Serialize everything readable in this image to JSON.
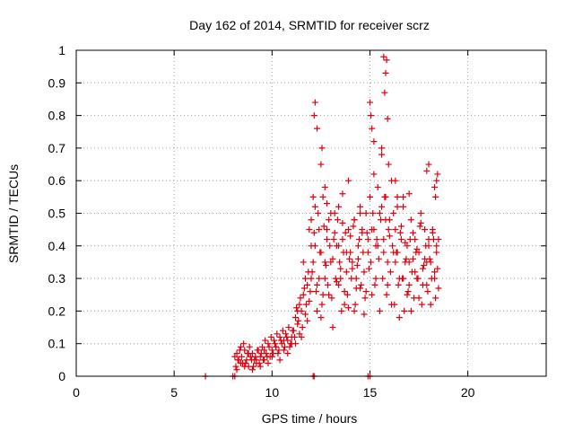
{
  "chart_data": {
    "type": "scatter",
    "title": "Day 162 of 2014, SRMTID for receiver scrz",
    "xlabel": "GPS time / hours",
    "ylabel": "SRMTID / TECUs",
    "xlim": [
      0,
      24
    ],
    "ylim": [
      0,
      1
    ],
    "xticks": [
      0,
      5,
      10,
      15,
      20
    ],
    "xtick_labels": [
      "0",
      "5",
      "10",
      "15",
      "20"
    ],
    "yticks": [
      0,
      0.1,
      0.2,
      0.3,
      0.4,
      0.5,
      0.6,
      0.7,
      0.8,
      0.9,
      1
    ],
    "ytick_labels": [
      "0",
      "0.1",
      "0.2",
      "0.3",
      "0.4",
      "0.5",
      "0.6",
      "0.7",
      "0.8",
      "0.9",
      "1"
    ],
    "grid": true,
    "marker": "+",
    "series": [
      {
        "name": "SRMTID",
        "color": "#e0000f",
        "x": [
          6.6,
          8.0,
          8.1,
          12.1,
          12.15,
          14.9,
          15.0,
          8.1,
          8.2,
          8.3,
          8.4,
          8.5,
          8.6,
          8.7,
          8.8,
          8.9,
          9.0,
          9.1,
          9.2,
          9.3,
          9.4,
          9.5,
          9.6,
          9.7,
          9.8,
          9.9,
          10.0,
          10.1,
          10.2,
          10.3,
          10.4,
          10.5,
          10.6,
          10.7,
          10.8,
          10.9,
          11.0,
          8.15,
          8.25,
          8.35,
          8.45,
          8.55,
          8.65,
          8.75,
          8.85,
          8.95,
          9.05,
          9.15,
          9.25,
          9.35,
          9.45,
          9.55,
          9.65,
          9.75,
          9.85,
          9.95,
          10.05,
          10.15,
          10.25,
          10.35,
          10.45,
          10.55,
          10.65,
          10.75,
          10.85,
          10.95,
          11.05,
          8.2,
          8.4,
          8.6,
          8.8,
          9.0,
          9.2,
          9.4,
          9.6,
          9.8,
          10.0,
          10.2,
          10.4,
          10.6,
          10.8,
          11.0,
          11.1,
          11.2,
          11.3,
          11.4,
          11.5,
          11.6,
          11.7,
          11.8,
          11.9,
          12.0,
          11.15,
          11.25,
          11.35,
          11.45,
          11.55,
          11.65,
          11.75,
          11.85,
          11.95,
          11.2,
          11.4,
          11.6,
          11.8,
          12.0,
          11.3,
          11.5,
          11.7,
          11.9,
          12.0,
          12.1,
          12.2,
          12.3,
          12.4,
          12.5,
          12.6,
          12.7,
          12.8,
          12.9,
          13.0,
          13.1,
          13.2,
          13.3,
          13.4,
          13.5,
          13.6,
          13.7,
          13.8,
          13.9,
          14.0,
          14.1,
          14.2,
          14.3,
          14.4,
          14.5,
          14.6,
          14.7,
          14.8,
          14.9,
          12.05,
          12.15,
          12.25,
          12.35,
          12.45,
          12.55,
          12.65,
          12.75,
          12.85,
          12.95,
          13.05,
          13.15,
          13.25,
          13.35,
          13.45,
          13.55,
          13.65,
          13.75,
          13.85,
          13.95,
          14.05,
          14.15,
          14.25,
          14.35,
          14.45,
          14.55,
          14.65,
          14.75,
          14.85,
          14.95,
          12.1,
          12.3,
          12.5,
          12.7,
          12.9,
          13.1,
          13.3,
          13.5,
          13.7,
          13.9,
          14.1,
          14.3,
          14.5,
          14.7,
          14.9,
          12.2,
          12.4,
          12.6,
          12.8,
          13.0,
          13.2,
          13.4,
          13.6,
          13.8,
          14.0,
          14.2,
          14.4,
          14.6,
          14.8,
          12.2,
          12.15,
          12.3,
          12.5,
          12.55,
          12.8,
          12.7,
          13.4,
          13.6,
          13.9,
          14.2,
          14.5,
          15.0,
          15.1,
          15.2,
          15.3,
          15.4,
          15.5,
          15.6,
          15.7,
          15.8,
          15.9,
          16.0,
          16.1,
          16.2,
          16.3,
          16.4,
          16.5,
          16.6,
          16.7,
          16.8,
          16.9,
          17.0,
          17.1,
          17.2,
          17.3,
          17.4,
          17.5,
          17.6,
          17.7,
          17.8,
          17.9,
          18.0,
          18.1,
          18.2,
          18.3,
          18.4,
          18.5,
          15.05,
          15.15,
          15.25,
          15.35,
          15.45,
          15.55,
          15.65,
          15.75,
          15.85,
          15.95,
          16.05,
          16.15,
          16.25,
          16.35,
          16.45,
          16.55,
          16.65,
          16.75,
          16.85,
          16.95,
          17.05,
          17.15,
          17.25,
          17.35,
          17.45,
          17.55,
          17.65,
          17.75,
          17.85,
          17.95,
          18.05,
          18.15,
          18.25,
          18.35,
          18.45,
          15.1,
          15.3,
          15.5,
          15.7,
          15.9,
          16.1,
          16.3,
          16.5,
          16.7,
          16.9,
          17.1,
          17.3,
          17.5,
          17.7,
          17.9,
          18.1,
          18.3,
          18.5,
          15.2,
          15.4,
          15.6,
          15.8,
          16.0,
          16.2,
          16.4,
          16.6,
          16.8,
          17.0,
          17.2,
          17.4,
          17.6,
          17.8,
          18.0,
          18.2,
          18.4,
          15.0,
          15.05,
          15.1,
          15.2,
          15.6,
          15.75,
          15.8,
          15.85,
          15.7,
          15.9,
          15.95,
          16.3,
          16.4,
          16.7,
          17.0,
          17.9,
          18.0,
          18.3,
          18.35,
          18.45,
          18.4
        ],
        "y": [
          0,
          0,
          0,
          0,
          0,
          0,
          0,
          0.06,
          0.07,
          0.05,
          0.09,
          0.04,
          0.08,
          0.05,
          0.03,
          0.06,
          0.07,
          0.05,
          0.04,
          0.08,
          0.06,
          0.09,
          0.05,
          0.07,
          0.1,
          0.06,
          0.08,
          0.11,
          0.09,
          0.07,
          0.12,
          0.1,
          0.08,
          0.13,
          0.11,
          0.09,
          0.12,
          0.03,
          0.05,
          0.08,
          0.06,
          0.1,
          0.04,
          0.07,
          0.09,
          0.05,
          0.03,
          0.06,
          0.08,
          0.04,
          0.07,
          0.05,
          0.11,
          0.06,
          0.09,
          0.12,
          0.07,
          0.1,
          0.13,
          0.08,
          0.11,
          0.14,
          0.09,
          0.12,
          0.15,
          0.1,
          0.14,
          0.02,
          0.04,
          0.03,
          0.07,
          0.02,
          0.05,
          0.03,
          0.08,
          0.04,
          0.06,
          0.09,
          0.05,
          0.11,
          0.07,
          0.1,
          0.14,
          0.18,
          0.16,
          0.22,
          0.2,
          0.25,
          0.19,
          0.28,
          0.23,
          0.3,
          0.12,
          0.21,
          0.17,
          0.24,
          0.15,
          0.27,
          0.22,
          0.32,
          0.26,
          0.1,
          0.13,
          0.35,
          0.17,
          0.4,
          0.2,
          0.12,
          0.3,
          0.45,
          0.48,
          0.35,
          0.52,
          0.28,
          0.45,
          0.38,
          0.55,
          0.3,
          0.42,
          0.25,
          0.5,
          0.36,
          0.44,
          0.29,
          0.4,
          0.33,
          0.47,
          0.26,
          0.38,
          0.21,
          0.43,
          0.35,
          0.48,
          0.3,
          0.4,
          0.27,
          0.45,
          0.32,
          0.5,
          0.38,
          0.32,
          0.44,
          0.26,
          0.5,
          0.38,
          0.22,
          0.46,
          0.34,
          0.28,
          0.4,
          0.24,
          0.42,
          0.3,
          0.48,
          0.35,
          0.2,
          0.38,
          0.44,
          0.25,
          0.36,
          0.3,
          0.46,
          0.22,
          0.34,
          0.42,
          0.28,
          0.38,
          0.24,
          0.44,
          0.33,
          0.55,
          0.2,
          0.18,
          0.35,
          0.48,
          0.15,
          0.4,
          0.3,
          0.22,
          0.45,
          0.33,
          0.27,
          0.5,
          0.19,
          0.42,
          0.4,
          0.3,
          0.25,
          0.45,
          0.35,
          0.5,
          0.28,
          0.42,
          0.32,
          0.38,
          0.2,
          0.36,
          0.44,
          0.26,
          0.84,
          0.8,
          0.76,
          0.65,
          0.7,
          0.53,
          0.58,
          0.52,
          0.56,
          0.6,
          0.48,
          0.52,
          0.55,
          0.45,
          0.62,
          0.4,
          0.58,
          0.5,
          0.68,
          0.42,
          0.55,
          0.35,
          0.48,
          0.6,
          0.38,
          0.45,
          0.52,
          0.3,
          0.42,
          0.55,
          0.35,
          0.4,
          0.28,
          0.48,
          0.36,
          0.42,
          0.3,
          0.38,
          0.5,
          0.33,
          0.45,
          0.28,
          0.4,
          0.35,
          0.44,
          0.32,
          0.38,
          0.42,
          0.35,
          0.5,
          0.28,
          0.42,
          0.36,
          0.48,
          0.3,
          0.55,
          0.25,
          0.45,
          0.32,
          0.4,
          0.22,
          0.38,
          0.28,
          0.44,
          0.3,
          0.2,
          0.36,
          0.26,
          0.42,
          0.32,
          0.24,
          0.38,
          0.3,
          0.46,
          0.22,
          0.34,
          0.4,
          0.26,
          0.36,
          0.3,
          0.42,
          0.24,
          0.33,
          0.25,
          0.3,
          0.2,
          0.38,
          0.28,
          0.22,
          0.35,
          0.18,
          0.3,
          0.25,
          0.2,
          0.32,
          0.24,
          0.28,
          0.35,
          0.22,
          0.3,
          0.27,
          0.45,
          0.4,
          0.52,
          0.48,
          0.43,
          0.5,
          0.38,
          0.46,
          0.41,
          0.35,
          0.44,
          0.39,
          0.47,
          0.36,
          0.42,
          0.45,
          0.4,
          0.84,
          0.8,
          0.76,
          0.72,
          0.7,
          0.87,
          0.93,
          0.97,
          0.98,
          0.79,
          0.65,
          0.6,
          0.55,
          0.52,
          0.56,
          0.63,
          0.65,
          0.58,
          0.55,
          0.62,
          0.6
        ]
      }
    ]
  }
}
